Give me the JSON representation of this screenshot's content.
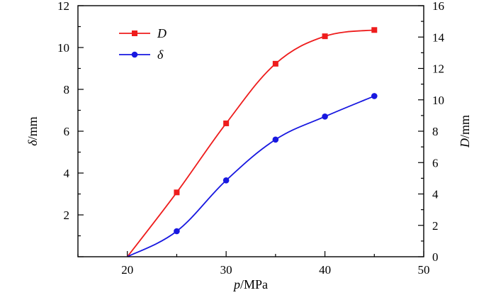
{
  "chart_data": {
    "type": "line",
    "xlabel": {
      "var": "p",
      "unit": "/MPa"
    },
    "ylabel_left": {
      "var": "δ",
      "unit": "/mm"
    },
    "ylabel_right": {
      "var": "D",
      "unit": "/mm"
    },
    "xlim": [
      15,
      50
    ],
    "ylim_left": [
      0,
      12
    ],
    "ylim_right": [
      0,
      16
    ],
    "x_ticks": [
      "20",
      "30",
      "40",
      "50"
    ],
    "y_left_ticks": [
      "2",
      "4",
      "6",
      "8",
      "10",
      "12"
    ],
    "y_right_ticks": [
      "0",
      "2",
      "4",
      "6",
      "8",
      "10",
      "12",
      "14",
      "16"
    ],
    "grid": false,
    "legend_position": "top-left",
    "series": [
      {
        "name": "D",
        "axis": "right",
        "color": "#ee1c1c",
        "marker": "square",
        "x": [
          20,
          25,
          30,
          35,
          40,
          45
        ],
        "y": [
          0,
          4.1,
          8.5,
          12.3,
          14.05,
          14.45
        ]
      },
      {
        "name": "δ",
        "axis": "left",
        "color": "#1818e0",
        "marker": "circle",
        "x": [
          20,
          25,
          30,
          35,
          40,
          45
        ],
        "y": [
          0,
          1.22,
          3.65,
          5.6,
          6.7,
          7.68
        ]
      }
    ]
  }
}
